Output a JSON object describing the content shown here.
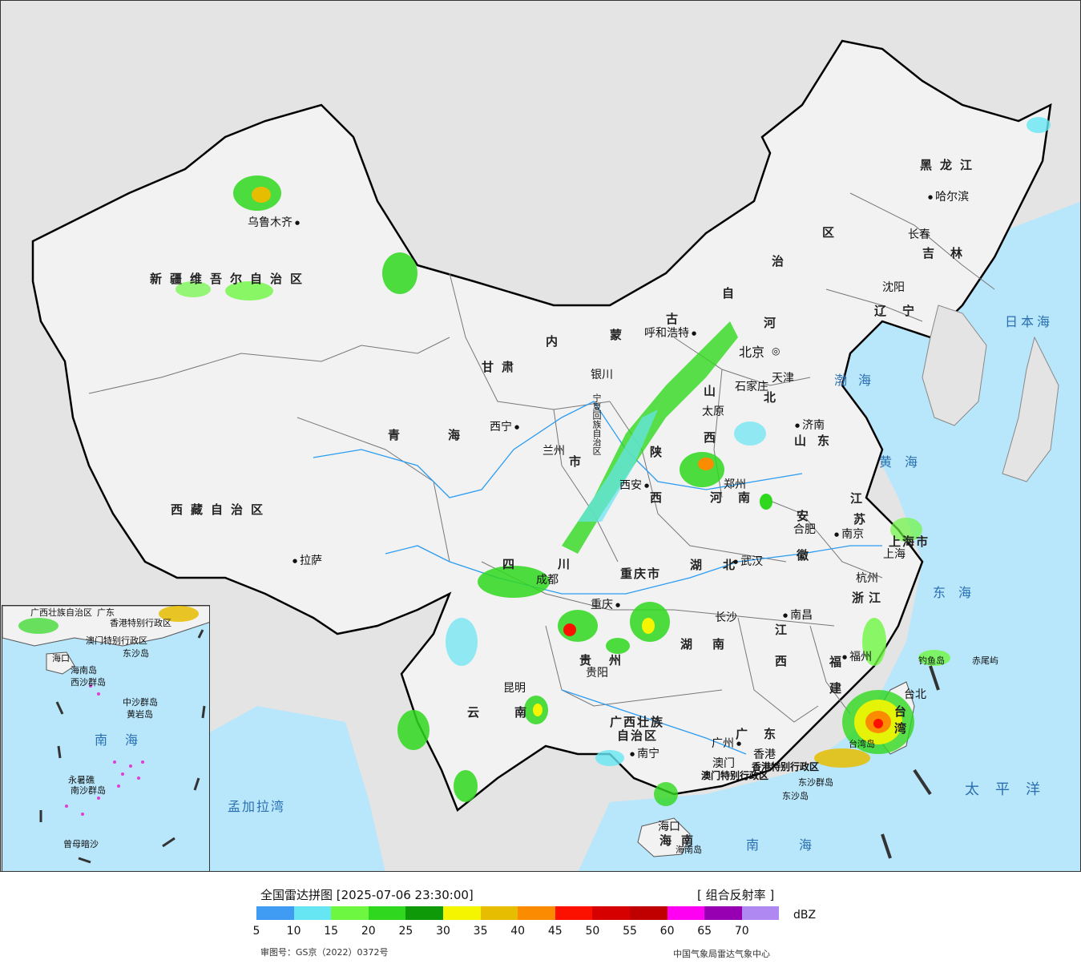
{
  "map": {
    "provinces": {
      "xinjiang": "新疆维吾尔自治区",
      "xizang": "西藏自治区",
      "qinghai": "青海",
      "gansu": "甘肃",
      "neimenggu_a": "内",
      "neimenggu_b": "蒙",
      "neimenggu_c": "古",
      "neimenggu_d": "自",
      "neimenggu_e": "治",
      "neimenggu_f": "区",
      "heilongjiang": "黑龙江",
      "jilin": "吉林",
      "liaoning": "辽宁",
      "hebei_a": "河",
      "hebei_b": "北",
      "shanxi_a": "山",
      "shanxi_b": "西",
      "shandong": "山东",
      "henan": "河南",
      "shaanxi_a": "陕",
      "shaanxi_b": "西",
      "ningxia": "宁夏回族自治区",
      "sichuan_a": "四",
      "sichuan_b": "川",
      "chongqing": "重庆市",
      "hubei": "湖北",
      "hunan_a": "湖",
      "hunan_b": "南",
      "anhui_a": "安",
      "anhui_b": "徽",
      "jiangsu_a": "江",
      "jiangsu_b": "苏",
      "shanghai": "上海市",
      "zhejiang": "浙江",
      "jiangxi_a": "江",
      "jiangxi_b": "西",
      "fujian_a": "福",
      "fujian_b": "建",
      "guizhou": "贵州",
      "yunnan": "云南",
      "guangxi_a": "广西壮族",
      "guangxi_b": "自治区",
      "guangdong": "广东",
      "hainan_a": "海",
      "hainan_b": "南",
      "taiwan_a": "台",
      "taiwan_b": "湾",
      "xianggang": "香港特别行政区",
      "aomen": "澳门特别行政区",
      "tianjin": "天津"
    },
    "cities": {
      "urumqi": "乌鲁木齐",
      "lasa": "拉萨",
      "xining": "西宁",
      "lanzhou": "兰州",
      "yinchuan": "银川",
      "huhehaote": "呼和浩特",
      "beijing": "北京",
      "tianjin": "天津",
      "shijiazhuang": "石家庄",
      "taiyuan": "太原",
      "jinan": "济南",
      "zhengzhou": "郑州",
      "xian": "西安",
      "chengdu": "成都",
      "chongqing": "重庆",
      "wuhan": "武汉",
      "hefei": "合肥",
      "nanjing": "南京",
      "shanghai": "上海",
      "hangzhou": "杭州",
      "nanchang": "南昌",
      "changsha": "长沙",
      "fuzhou": "福州",
      "guiyang": "贵阳",
      "kunming": "昆明",
      "nanning": "南宁",
      "guangzhou": "广州",
      "aomen": "澳门",
      "xianggang": "香港",
      "haikou": "海口",
      "taibei": "台北",
      "haerbin": "哈尔滨",
      "changchun": "长春",
      "shenyang": "沈阳"
    },
    "seas": {
      "bohai": "渤海",
      "huanghai": "黄海",
      "donghai": "东海",
      "nanhai": "南海",
      "taipingyang": "太平洋",
      "ribenhai": "日本海",
      "mengjialawan": "孟加拉湾"
    },
    "islands": {
      "hainandao": "海南岛",
      "taiwandao": "台湾岛",
      "dongshaqundao": "东沙群岛",
      "dongshadao": "东沙岛",
      "diaoyudao": "钓鱼岛",
      "chiweiyu": "赤尾屿"
    }
  },
  "inset": {
    "labels": {
      "guangdong": "广东",
      "guangxi": "广西壮族自治区",
      "xianggang": "香港特别行政区",
      "aomen": "澳门特别行政区",
      "dongsha": "东沙岛",
      "haikou": "海口",
      "hainandao": "海南岛",
      "xisha": "西沙群岛",
      "zhongsha": "中沙群岛",
      "huangyandao": "黄岩岛",
      "nanhai": "南海",
      "nansha": "南沙群岛",
      "yongshujiao": "永暑礁",
      "zengmuansha": "曾母暗沙"
    }
  },
  "legend": {
    "title": "全国雷达拼图 [2025-07-06 23:30:00]",
    "product": "[ 组合反射率 ]",
    "unit": "dBZ",
    "colors": [
      "#3f9cf2",
      "#66e6f2",
      "#6ef741",
      "#2fd81e",
      "#0e9a08",
      "#f5f500",
      "#e6bd00",
      "#fb8b00",
      "#fc1000",
      "#d60000",
      "#c00000",
      "#ff00f2",
      "#9600b2",
      "#b088f2"
    ],
    "ticks": [
      "5",
      "10",
      "15",
      "20",
      "25",
      "30",
      "35",
      "40",
      "45",
      "50",
      "55",
      "60",
      "65",
      "70"
    ],
    "review_no": "审图号：GS京（2022）0372号",
    "producer": "中国气象局雷达气象中心"
  }
}
